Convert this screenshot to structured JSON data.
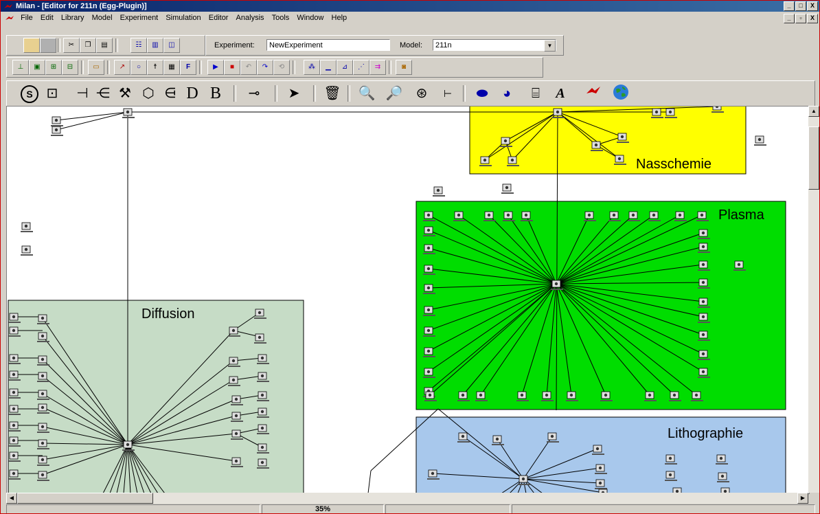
{
  "window": {
    "title": "Milan - [Editor for 211n (Egg-Plugin)]",
    "buttons": [
      "_",
      "□",
      "X"
    ],
    "mdi_buttons": [
      "_",
      "▫",
      "X"
    ]
  },
  "menu": [
    "File",
    "Edit",
    "Library",
    "Model",
    "Experiment",
    "Simulation",
    "Editor",
    "Analysis",
    "Tools",
    "Window",
    "Help"
  ],
  "toolbar": {
    "experiment_label": "Experiment:",
    "experiment_value": "NewExperiment",
    "model_label": "Model:",
    "model_value": "211n"
  },
  "palette": {
    "d_label": "D",
    "b_label": "B",
    "text_label": "A"
  },
  "groups": {
    "nasschemie": "Nasschemie",
    "plasma": "Plasma",
    "diffusion": "Diffusion",
    "lithographie": "Lithographie"
  },
  "colors": {
    "nasschemie": "#ffff00",
    "plasma": "#00dd00",
    "diffusion": "#c6dcc6",
    "lithographie": "#a8c8ec"
  },
  "status": {
    "zoom": "35%"
  }
}
